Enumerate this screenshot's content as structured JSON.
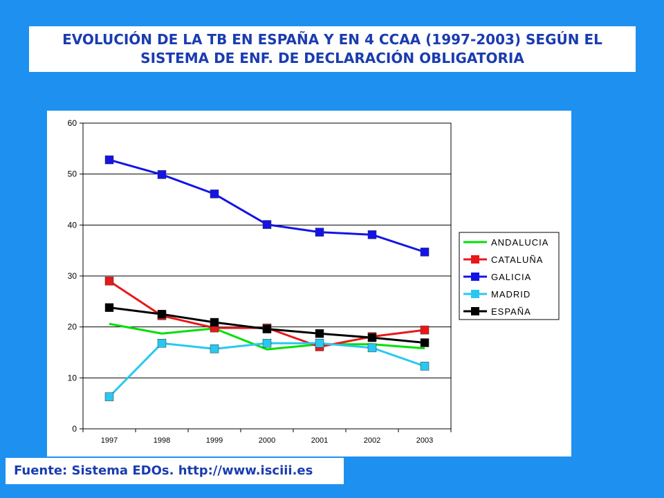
{
  "header": {
    "title_line1": "EVOLUCIÓN DE LA TB EN ESPAÑA Y EN 4 CCAA (1997-2003) SEGÚN EL",
    "title_line2": "SISTEMA DE ENF. DE DECLARACIÓN OBLIGATORIA"
  },
  "footer": {
    "source": "Fuente: Sistema EDOs. http://www.isciii.es"
  },
  "colors": {
    "background": "#1e90f0",
    "title_text": "#1a3cb0"
  },
  "chart_data": {
    "type": "line",
    "title": "",
    "xlabel": "",
    "ylabel": "",
    "categories": [
      "1997",
      "1998",
      "1999",
      "2000",
      "2001",
      "2002",
      "2003"
    ],
    "ylim": [
      0,
      60
    ],
    "yticks": [
      0,
      10,
      20,
      30,
      40,
      50,
      60
    ],
    "grid": true,
    "legend_position": "right",
    "series": [
      {
        "name": "ANDALUCIA",
        "color": "#00e000",
        "marker": false,
        "values": [
          20.6,
          18.7,
          19.7,
          15.6,
          16.6,
          16.6,
          15.8
        ]
      },
      {
        "name": "CATALUÑA",
        "color": "#e81818",
        "marker": true,
        "values": [
          29.0,
          22.2,
          19.8,
          19.8,
          16.1,
          18.1,
          19.4
        ]
      },
      {
        "name": "GALICIA",
        "color": "#1414e6",
        "marker": true,
        "values": [
          52.8,
          49.9,
          46.1,
          40.1,
          38.6,
          38.1,
          34.7
        ]
      },
      {
        "name": "MADRID",
        "color": "#28c8f0",
        "marker": true,
        "values": [
          6.3,
          16.8,
          15.7,
          16.8,
          16.8,
          15.9,
          12.3
        ]
      },
      {
        "name": "ESPAÑA",
        "color": "#000000",
        "marker": true,
        "values": [
          23.8,
          22.5,
          20.9,
          19.6,
          18.7,
          17.9,
          16.9
        ]
      }
    ]
  }
}
